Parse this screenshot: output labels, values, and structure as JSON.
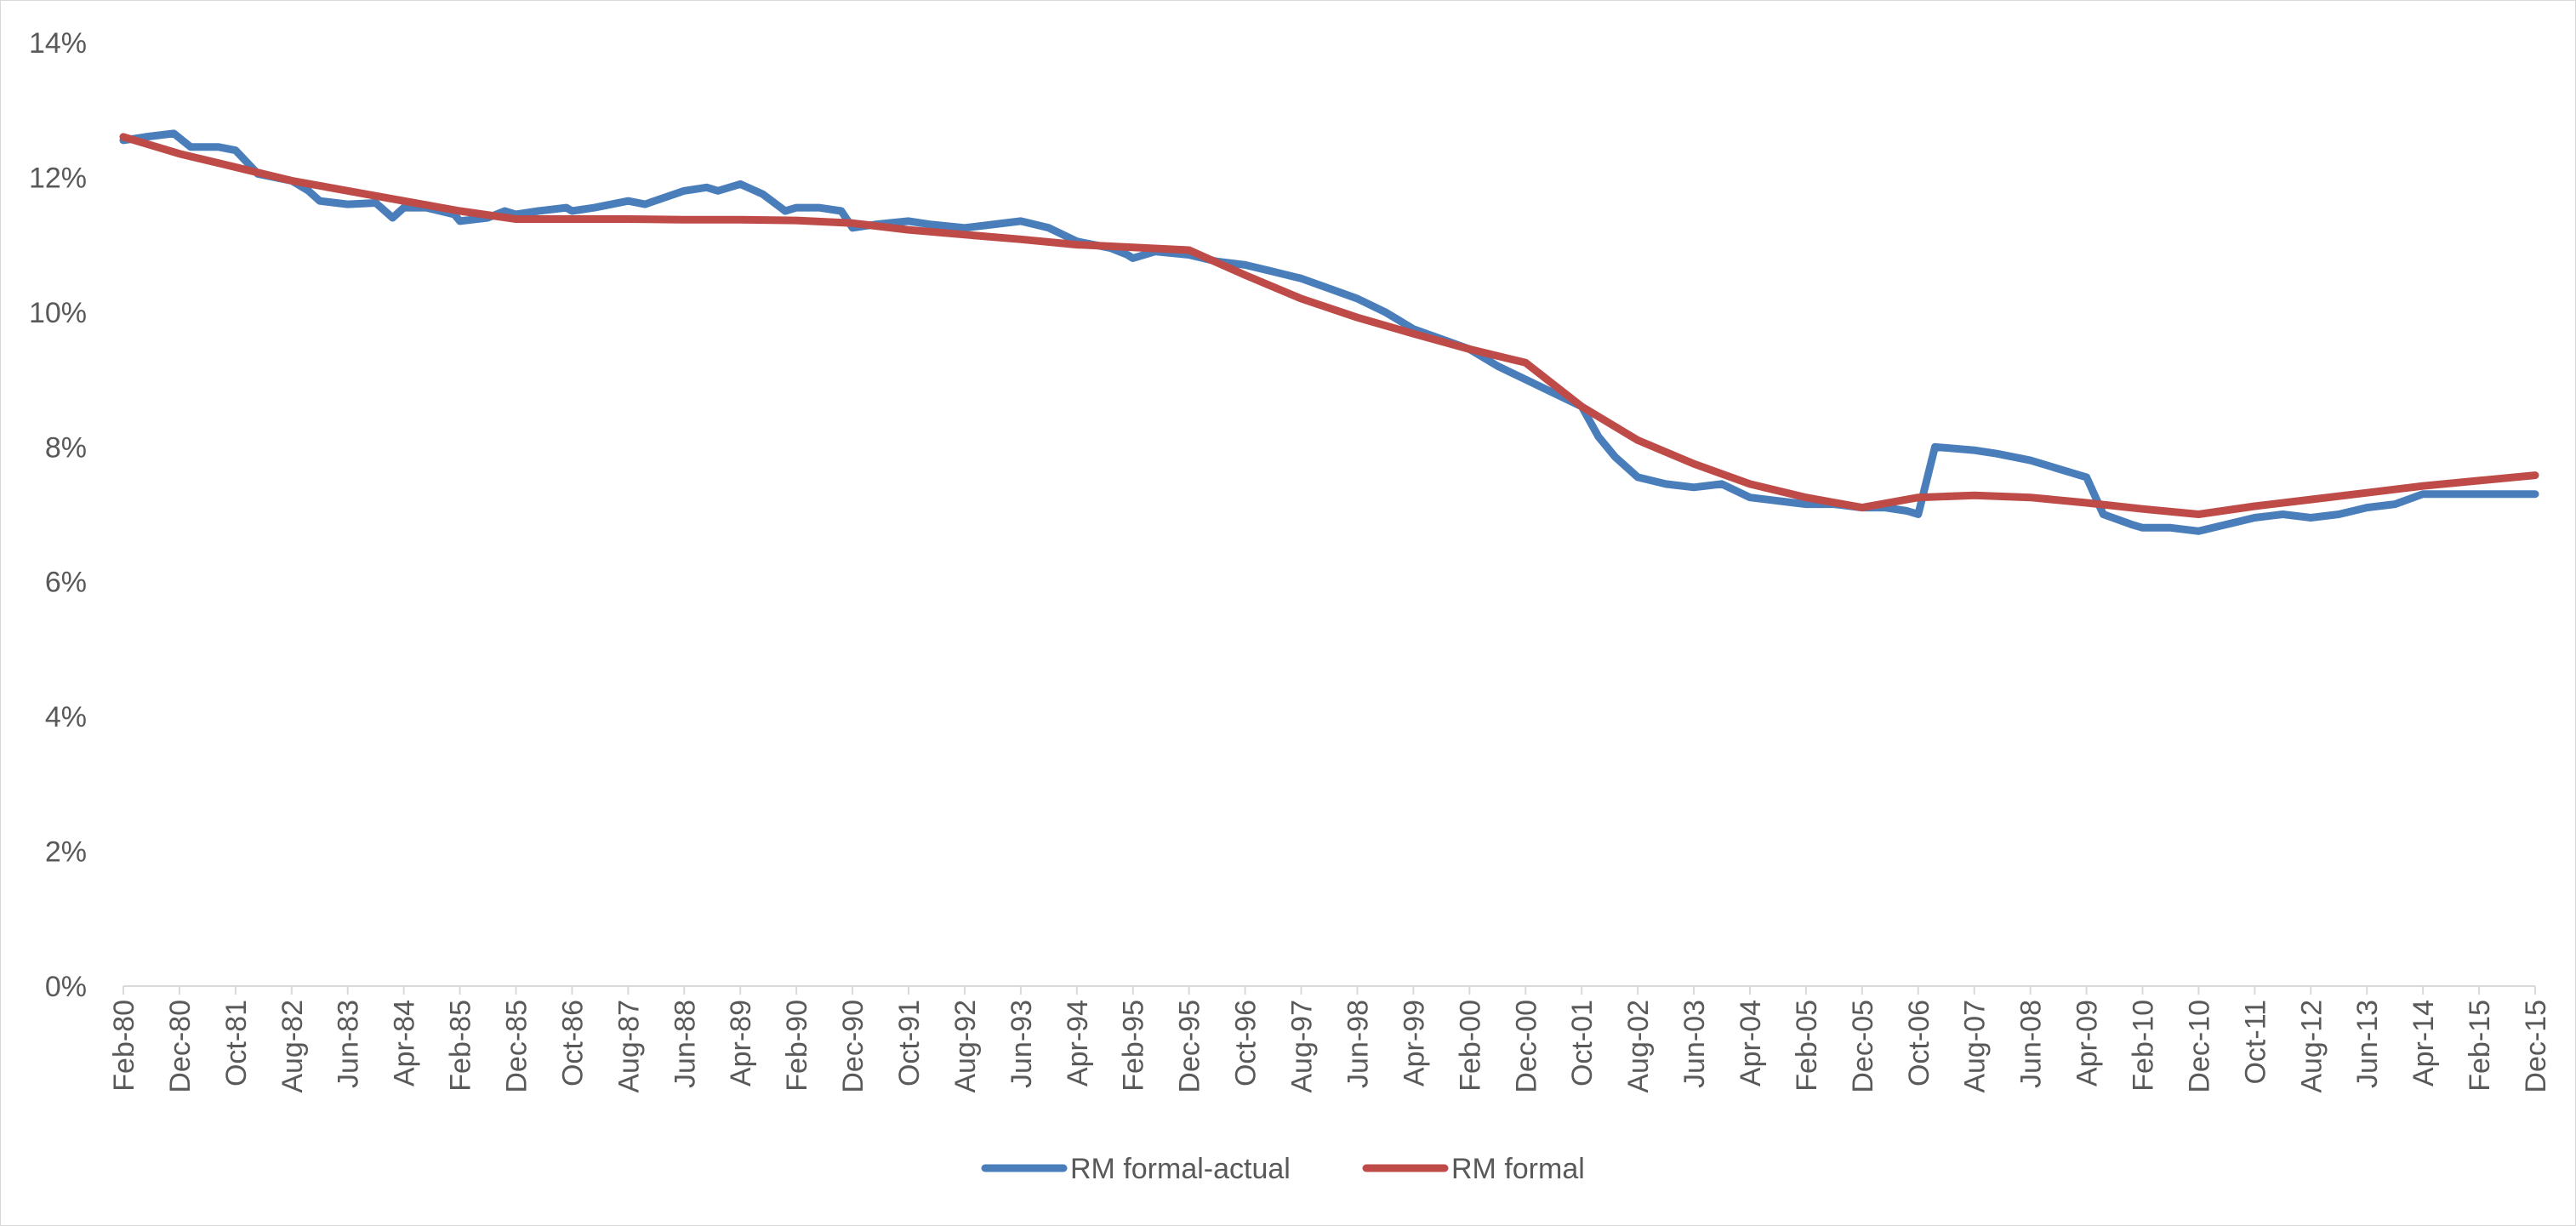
{
  "chart_data": {
    "type": "line",
    "title": "",
    "xlabel": "",
    "ylabel": "",
    "ylim": [
      0,
      14
    ],
    "y_ticks": [
      "0%",
      "2%",
      "4%",
      "6%",
      "8%",
      "10%",
      "12%",
      "14%"
    ],
    "y_tick_values": [
      0,
      2,
      4,
      6,
      8,
      10,
      12,
      14
    ],
    "x_range": [
      "Feb-80",
      "Dec-15"
    ],
    "x_tick_labels": [
      "Feb-80",
      "Dec-80",
      "Oct-81",
      "Aug-82",
      "Jun-83",
      "Apr-84",
      "Feb-85",
      "Dec-85",
      "Oct-86",
      "Aug-87",
      "Jun-88",
      "Apr-89",
      "Feb-90",
      "Dec-90",
      "Oct-91",
      "Aug-92",
      "Jun-93",
      "Apr-94",
      "Feb-95",
      "Dec-95",
      "Oct-96",
      "Aug-97",
      "Jun-98",
      "Apr-99",
      "Feb-00",
      "Dec-00",
      "Oct-01",
      "Aug-02",
      "Jun-03",
      "Apr-04",
      "Feb-05",
      "Dec-05",
      "Oct-06",
      "Aug-07",
      "Jun-08",
      "Apr-09",
      "Feb-10",
      "Dec-10",
      "Oct-11",
      "Aug-12",
      "Jun-13",
      "Apr-14",
      "Feb-15",
      "Dec-15"
    ],
    "grid": false,
    "legend_position": "bottom",
    "series": [
      {
        "name": "RM formal-actual",
        "color": "#4a7ebb",
        "x": [
          "Feb-80",
          "Jun-80",
          "Nov-80",
          "Feb-81",
          "Jul-81",
          "Oct-81",
          "Feb-82",
          "Aug-82",
          "Nov-82",
          "Jan-83",
          "Jun-83",
          "Nov-83",
          "Feb-84",
          "Apr-84",
          "Aug-84",
          "Jan-85",
          "Feb-85",
          "Jul-85",
          "Oct-85",
          "Dec-85",
          "Apr-86",
          "Sep-86",
          "Oct-86",
          "Feb-87",
          "Aug-87",
          "Nov-87",
          "Jun-88",
          "Oct-88",
          "Dec-88",
          "Apr-89",
          "Aug-89",
          "Dec-89",
          "Feb-90",
          "Jun-90",
          "Oct-90",
          "Dec-90",
          "Apr-91",
          "Oct-91",
          "Feb-92",
          "Aug-92",
          "Jan-93",
          "Jun-93",
          "Nov-93",
          "Apr-94",
          "Oct-94",
          "Jan-95",
          "Feb-95",
          "Jun-95",
          "Dec-95",
          "May-96",
          "Oct-96",
          "Mar-97",
          "Aug-97",
          "Jan-98",
          "Jun-98",
          "Nov-98",
          "Apr-99",
          "Sep-99",
          "Feb-00",
          "Jul-00",
          "Dec-00",
          "May-01",
          "Oct-01",
          "Jan-02",
          "Apr-02",
          "Aug-02",
          "Jan-03",
          "Jun-03",
          "Nov-03",
          "Apr-04",
          "Sep-04",
          "Feb-05",
          "Jul-05",
          "Dec-05",
          "Apr-06",
          "Aug-06",
          "Oct-06",
          "Jan-07",
          "Aug-07",
          "Dec-07",
          "Jun-08",
          "Oct-08",
          "Apr-09",
          "Jul-09",
          "Dec-09",
          "Feb-10",
          "Jul-10",
          "Dec-10",
          "May-11",
          "Oct-11",
          "Mar-12",
          "Aug-12",
          "Jan-13",
          "Jun-13",
          "Nov-13",
          "Apr-14",
          "Sep-14",
          "Feb-15",
          "Jul-15",
          "Dec-15"
        ],
        "values": [
          12.55,
          12.6,
          12.65,
          12.45,
          12.45,
          12.4,
          12.05,
          11.95,
          11.8,
          11.65,
          11.6,
          11.62,
          11.4,
          11.55,
          11.55,
          11.45,
          11.35,
          11.4,
          11.5,
          11.45,
          11.5,
          11.55,
          11.5,
          11.55,
          11.65,
          11.6,
          11.8,
          11.85,
          11.8,
          11.9,
          11.75,
          11.5,
          11.55,
          11.55,
          11.5,
          11.25,
          11.3,
          11.35,
          11.3,
          11.25,
          11.3,
          11.35,
          11.25,
          11.05,
          10.95,
          10.85,
          10.8,
          10.9,
          10.85,
          10.75,
          10.7,
          10.6,
          10.5,
          10.35,
          10.2,
          10.0,
          9.75,
          9.6,
          9.45,
          9.2,
          9.0,
          8.8,
          8.6,
          8.15,
          7.85,
          7.55,
          7.45,
          7.4,
          7.45,
          7.25,
          7.2,
          7.15,
          7.15,
          7.1,
          7.1,
          7.05,
          7.0,
          8.0,
          7.95,
          7.9,
          7.8,
          7.7,
          7.55,
          7.0,
          6.85,
          6.8,
          6.8,
          6.75,
          6.85,
          6.95,
          7.0,
          6.95,
          7.0,
          7.1,
          7.15,
          7.3,
          7.3,
          7.3,
          7.3,
          7.3
        ]
      },
      {
        "name": "RM formal",
        "color": "#be4b48",
        "x": [
          "Feb-80",
          "Dec-80",
          "Oct-81",
          "Aug-82",
          "Jun-83",
          "Apr-84",
          "Feb-85",
          "Dec-85",
          "Oct-86",
          "Aug-87",
          "Jun-88",
          "Apr-89",
          "Feb-90",
          "Dec-90",
          "Oct-91",
          "Aug-92",
          "Jun-93",
          "Apr-94",
          "Feb-95",
          "Dec-95",
          "Oct-96",
          "Aug-97",
          "Jun-98",
          "Apr-99",
          "Feb-00",
          "Dec-00",
          "Oct-01",
          "Aug-02",
          "Jun-03",
          "Apr-04",
          "Feb-05",
          "Dec-05",
          "Oct-06",
          "Aug-07",
          "Jun-08",
          "Apr-09",
          "Feb-10",
          "Dec-10",
          "Oct-11",
          "Aug-12",
          "Jun-13",
          "Apr-14",
          "Feb-15",
          "Dec-15"
        ],
        "values": [
          12.6,
          12.35,
          12.15,
          11.95,
          11.8,
          11.65,
          11.5,
          11.38,
          11.38,
          11.38,
          11.37,
          11.37,
          11.36,
          11.32,
          11.22,
          11.15,
          11.08,
          11.0,
          10.96,
          10.92,
          10.55,
          10.2,
          9.92,
          9.68,
          9.45,
          9.25,
          8.6,
          8.1,
          7.75,
          7.45,
          7.25,
          7.1,
          7.25,
          7.28,
          7.25,
          7.17,
          7.08,
          7.0,
          7.12,
          7.22,
          7.32,
          7.42,
          7.5,
          7.58
        ]
      }
    ]
  }
}
